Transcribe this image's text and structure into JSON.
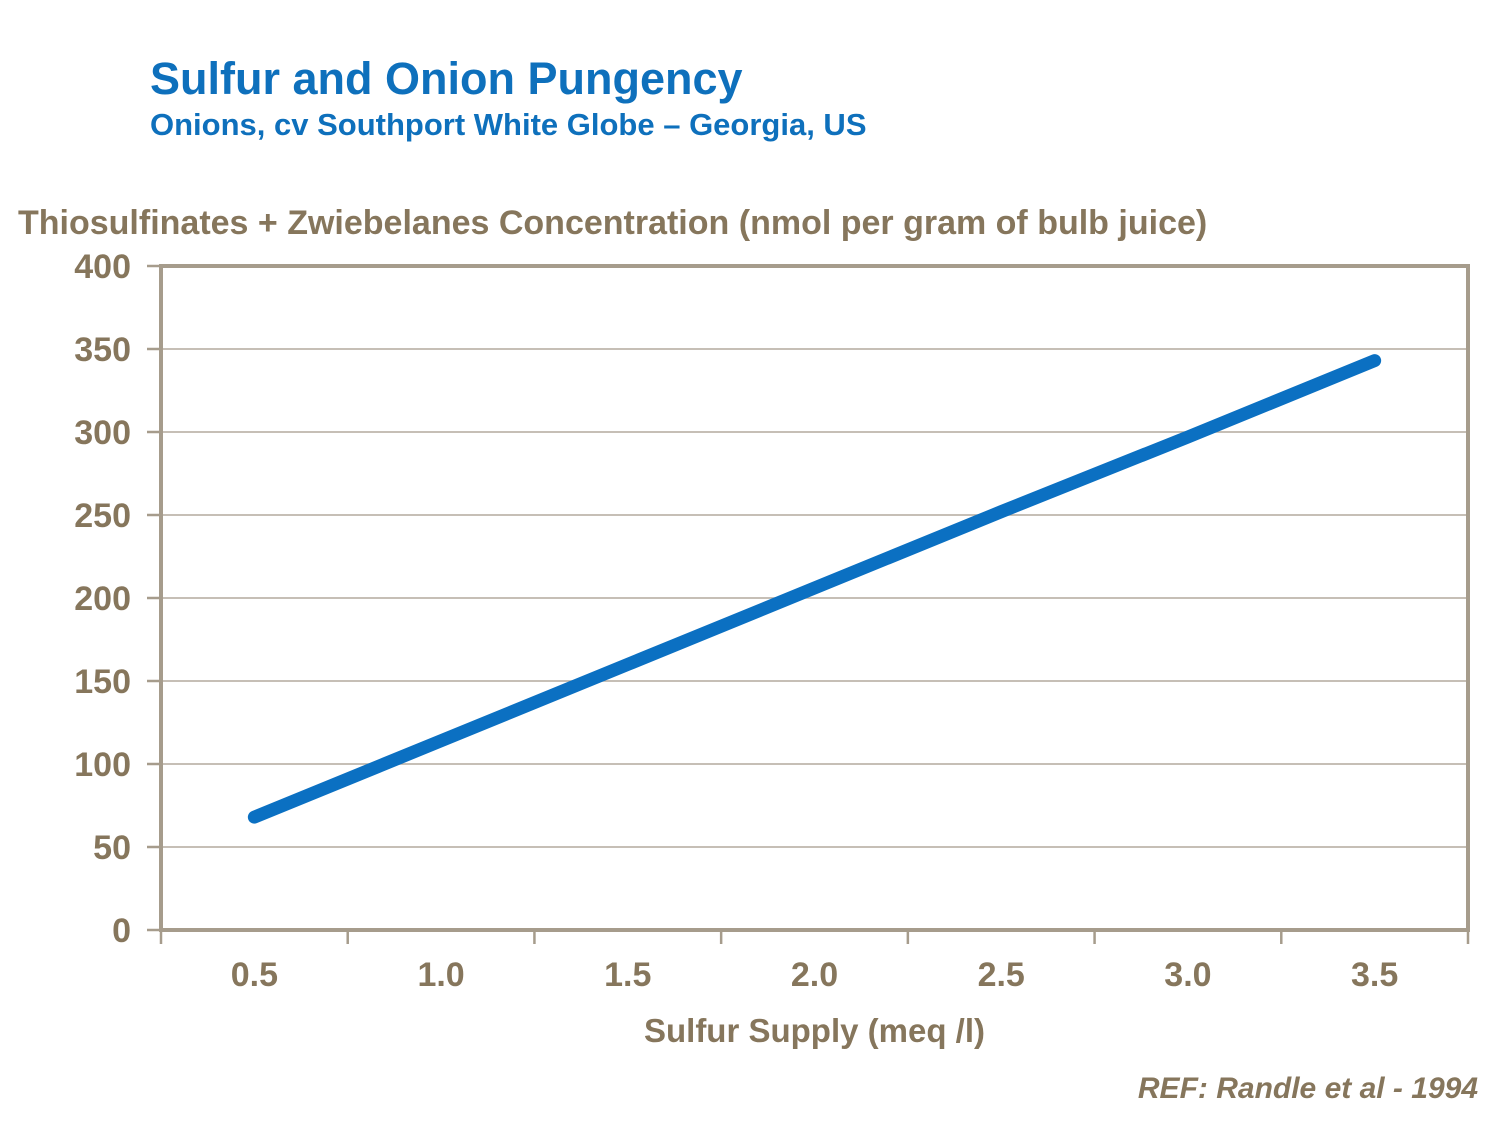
{
  "header": {
    "title": "Sulfur and Onion Pungency",
    "subtitle": "Onions, cv Southport White Globe – Georgia, US"
  },
  "footer": {
    "reference": "REF: Randle et al - 1994"
  },
  "colors": {
    "title_blue": "#0e70bc",
    "line_blue": "#0b70c2",
    "axis_text": "#86765c",
    "gridline": "#b3aa9d",
    "axis_border": "#a69c8c",
    "background": "#ffffff"
  },
  "chart_data": {
    "type": "line",
    "title": "Sulfur and Onion Pungency",
    "subtitle": "Onions, cv Southport White Globe – Georgia, US",
    "ylabel": "Thiosulfinates + Zwiebelanes Concentration (nmol per gram of bulb juice)",
    "xlabel": "Sulfur Supply (meq /l)",
    "x": [
      0.5,
      1.0,
      1.5,
      2.0,
      2.5,
      3.0,
      3.5
    ],
    "y": [
      68,
      114,
      160,
      206,
      252,
      297,
      343
    ],
    "x_tick_labels": [
      "0.5",
      "1.0",
      "1.5",
      "2.0",
      "2.5",
      "3.0",
      "3.5"
    ],
    "y_ticks": [
      0,
      50,
      100,
      150,
      200,
      250,
      300,
      350,
      400
    ],
    "ylim": [
      0,
      400
    ],
    "grid": "horizontal",
    "legend": "none",
    "markers": "none",
    "line_color": "#0b70c2",
    "line_width": 13,
    "annotation": "REF: Randle et al - 1994"
  }
}
